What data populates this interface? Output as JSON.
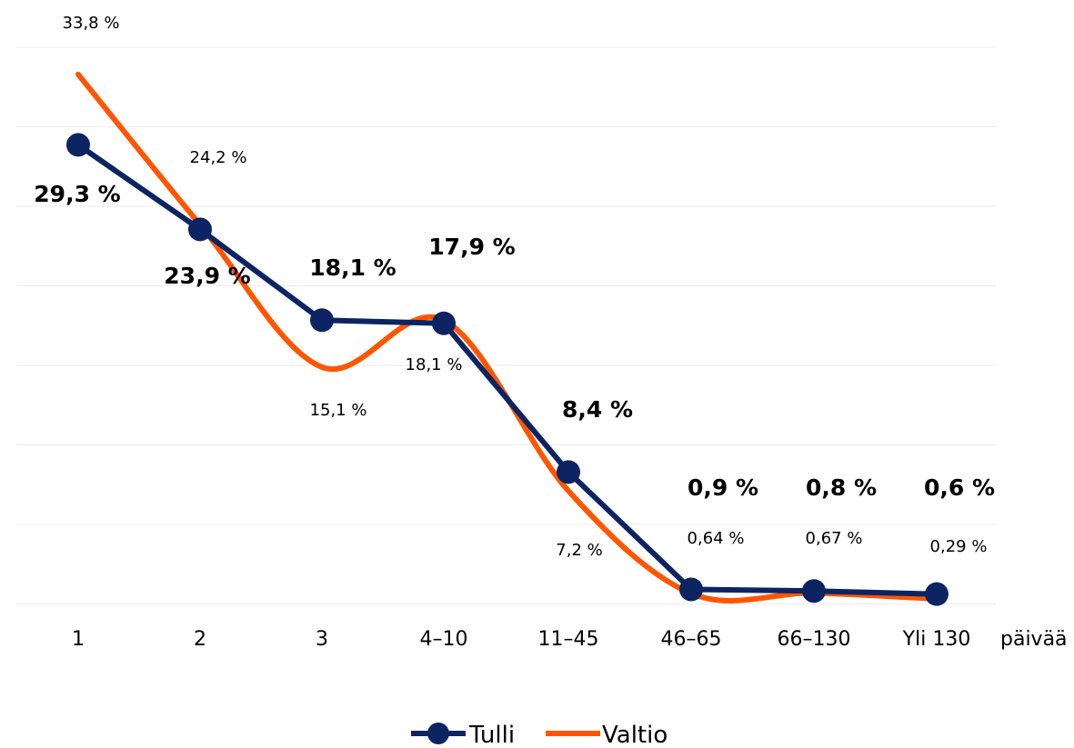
{
  "chart_data": {
    "type": "line",
    "categories": [
      "1",
      "2",
      "3",
      "4–10",
      "11–45",
      "46–65",
      "66–130",
      "Yli 130"
    ],
    "x_unit_label": "päivää",
    "ylim": [
      0,
      36
    ],
    "grid": true,
    "legend_position": "bottom",
    "series": [
      {
        "name": "Tulli",
        "color": "#0c2461",
        "marker": "circle",
        "values": [
          29.3,
          23.9,
          18.1,
          17.9,
          8.4,
          0.9,
          0.8,
          0.6
        ],
        "labels": [
          "29,3 %",
          "23,9 %",
          "18,1 %",
          "17,9 %",
          "8,4 %",
          "0,9 %",
          "0,8 %",
          "0,6 %"
        ]
      },
      {
        "name": "Valtio",
        "color": "#ff5500",
        "marker": "none",
        "smooth": true,
        "values": [
          33.8,
          24.2,
          15.1,
          18.1,
          7.2,
          0.64,
          0.67,
          0.29
        ],
        "labels": [
          "33,8 %",
          "24,2 %",
          "15,1 %",
          "18,1 %",
          "7,2 %",
          "0,64 %",
          "0,67 %",
          "0,29 %"
        ]
      }
    ]
  }
}
